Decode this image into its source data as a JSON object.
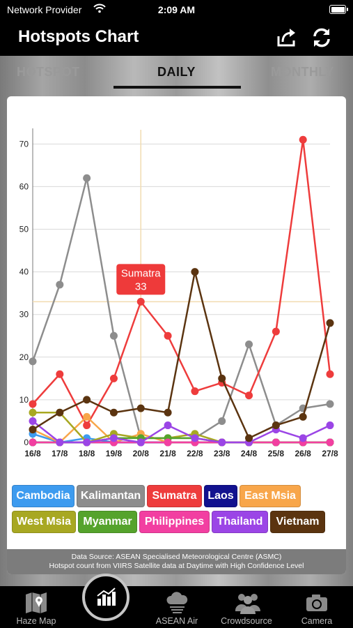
{
  "status": {
    "carrier": "Network Provider",
    "time": "2:09 AM"
  },
  "nav": {
    "title": "Hotspots Chart",
    "share_icon": "share-icon",
    "refresh_icon": "refresh-icon"
  },
  "tabs": [
    {
      "label": "HOTSPOT",
      "selected": false
    },
    {
      "label": "DAILY",
      "selected": true
    },
    {
      "label": "MONTHLY",
      "selected": false
    }
  ],
  "chart_data": {
    "type": "line",
    "x": [
      "16/8",
      "17/8",
      "18/8",
      "19/8",
      "20/8",
      "21/8",
      "22/8",
      "23/8",
      "24/8",
      "25/8",
      "26/8",
      "27/8"
    ],
    "y_ticks": [
      0,
      10,
      20,
      30,
      40,
      50,
      60,
      70
    ],
    "ylim": [
      0,
      73
    ],
    "grid": true,
    "tooltip": {
      "series": "Sumatra",
      "value": "33",
      "x_index": 4
    },
    "series": [
      {
        "name": "Cambodia",
        "color": "#3d9bef",
        "values": [
          2,
          0,
          1,
          0,
          0,
          0,
          0,
          0,
          0,
          0,
          0,
          0
        ]
      },
      {
        "name": "Kalimantan",
        "color": "#8d8d8d",
        "values": [
          19,
          37,
          62,
          25,
          1,
          1,
          1,
          5,
          23,
          4,
          8,
          9
        ]
      },
      {
        "name": "Sumatra",
        "color": "#ee3c3c",
        "values": [
          9,
          16,
          4,
          15,
          33,
          25,
          12,
          14,
          11,
          26,
          71,
          16
        ]
      },
      {
        "name": "Laos",
        "color": "#12128f",
        "values": [
          0,
          0,
          0,
          0,
          0,
          0,
          0,
          0,
          0,
          0,
          0,
          0
        ]
      },
      {
        "name": "East Msia",
        "color": "#f8a64a",
        "values": [
          3,
          0,
          6,
          0,
          2,
          0,
          0,
          0,
          0,
          0,
          0,
          0
        ]
      },
      {
        "name": "West Msia",
        "color": "#a8a822",
        "values": [
          7,
          7,
          0,
          2,
          1,
          1,
          2,
          0,
          0,
          0,
          0,
          0
        ]
      },
      {
        "name": "Myanmar",
        "color": "#55a32c",
        "values": [
          0,
          0,
          0,
          1,
          1,
          1,
          1,
          0,
          0,
          0,
          0,
          0
        ]
      },
      {
        "name": "Philippines",
        "color": "#f23fa1",
        "values": [
          0,
          0,
          0,
          0,
          0,
          0,
          0,
          0,
          0,
          0,
          0,
          0
        ]
      },
      {
        "name": "Thailand",
        "color": "#9b45e6",
        "values": [
          5,
          0,
          0,
          1,
          0,
          4,
          1,
          0,
          0,
          3,
          1,
          4
        ]
      },
      {
        "name": "Vietnam",
        "color": "#5b3410",
        "values": [
          3,
          7,
          10,
          7,
          8,
          7,
          40,
          15,
          1,
          4,
          6,
          28
        ]
      }
    ]
  },
  "source": {
    "line1": "Data Source: ASEAN Specialised Meteorological Centre (ASMC)",
    "line2": "Hotspot count from VIIRS Satellite data at Daytime with High Confidence Level"
  },
  "tabbar": [
    {
      "label": "Haze Map",
      "icon": "map-icon"
    },
    {
      "label": "",
      "icon": "bar-chart-icon"
    },
    {
      "label": "ASEAN Air",
      "icon": "cloud-rain-icon"
    },
    {
      "label": "Crowdsource",
      "icon": "people-icon"
    },
    {
      "label": "Camera",
      "icon": "camera-icon"
    }
  ]
}
